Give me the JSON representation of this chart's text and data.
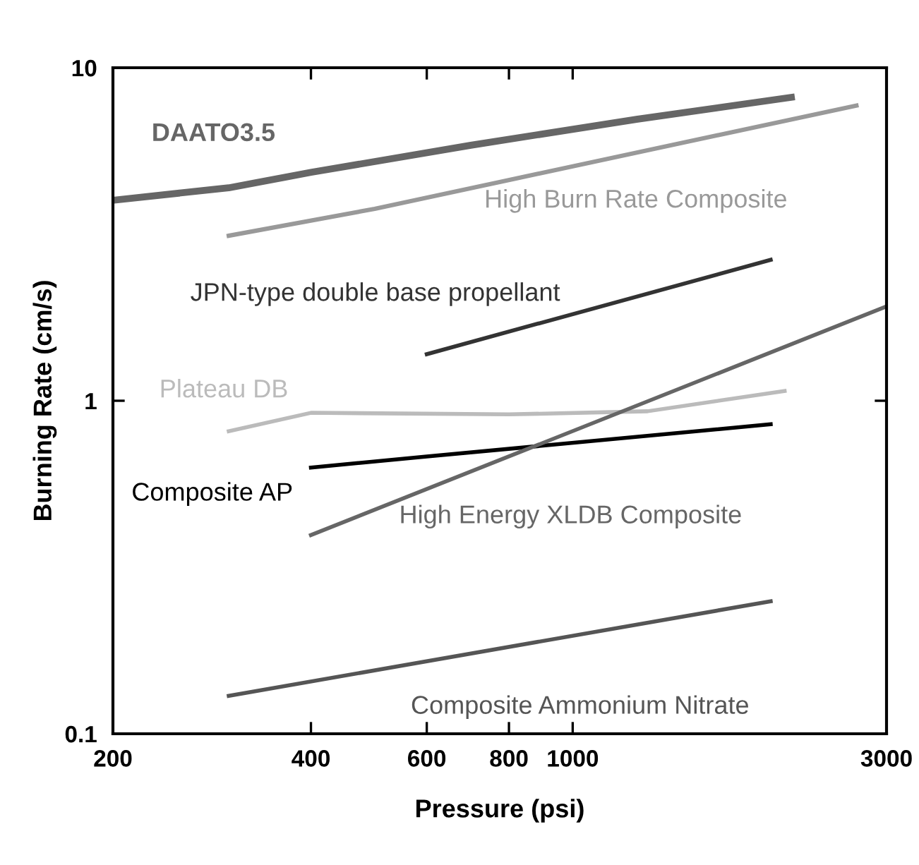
{
  "chart_data": {
    "type": "line",
    "xlabel": "Pressure (psi)",
    "ylabel": "Burning Rate (cm/s)",
    "log": "xy",
    "xlim": [
      200,
      3000
    ],
    "ylim": [
      0.1,
      10
    ],
    "xticks": [
      200,
      400,
      600,
      800,
      1000,
      3000
    ],
    "yticks": [
      {
        "value": 0.1,
        "label": "0.1"
      },
      {
        "value": 1,
        "label": "1"
      },
      {
        "value": 10,
        "label": "10"
      }
    ],
    "grid": false,
    "legend": false,
    "marker": "none",
    "line_style": "solid",
    "series": [
      {
        "name": "DAATO3.5",
        "color": "#666666",
        "x": [
          200,
          300,
          400,
          700,
          1250,
          2150
        ],
        "values": [
          4.0,
          4.36,
          4.85,
          5.85,
          7.0,
          8.15
        ]
      },
      {
        "name": "High Burn Rate Composite",
        "color": "#999999",
        "x": [
          300,
          500,
          2700
        ],
        "values": [
          3.13,
          3.77,
          7.7
        ]
      },
      {
        "name": "JPN-type double base propellant",
        "color": "#333333",
        "x": [
          600,
          2000
        ],
        "values": [
          1.38,
          2.65
        ]
      },
      {
        "name": "Plateau DB",
        "color": "#bbbbbb",
        "x": [
          300,
          400,
          800,
          1300,
          2100
        ],
        "values": [
          0.81,
          0.92,
          0.91,
          0.93,
          1.07
        ]
      },
      {
        "name": "Composite AP",
        "color": "#000000",
        "x": [
          400,
          600,
          2000
        ],
        "values": [
          0.63,
          0.68,
          0.85
        ]
      },
      {
        "name": "High Energy XLDB Composite",
        "color": "#666666",
        "x": [
          400,
          3000
        ],
        "values": [
          0.395,
          1.92
        ]
      },
      {
        "name": "Composite Ammonium Nitrate",
        "color": "#555555",
        "x": [
          300,
          2000
        ],
        "values": [
          0.13,
          0.25
        ]
      }
    ]
  }
}
